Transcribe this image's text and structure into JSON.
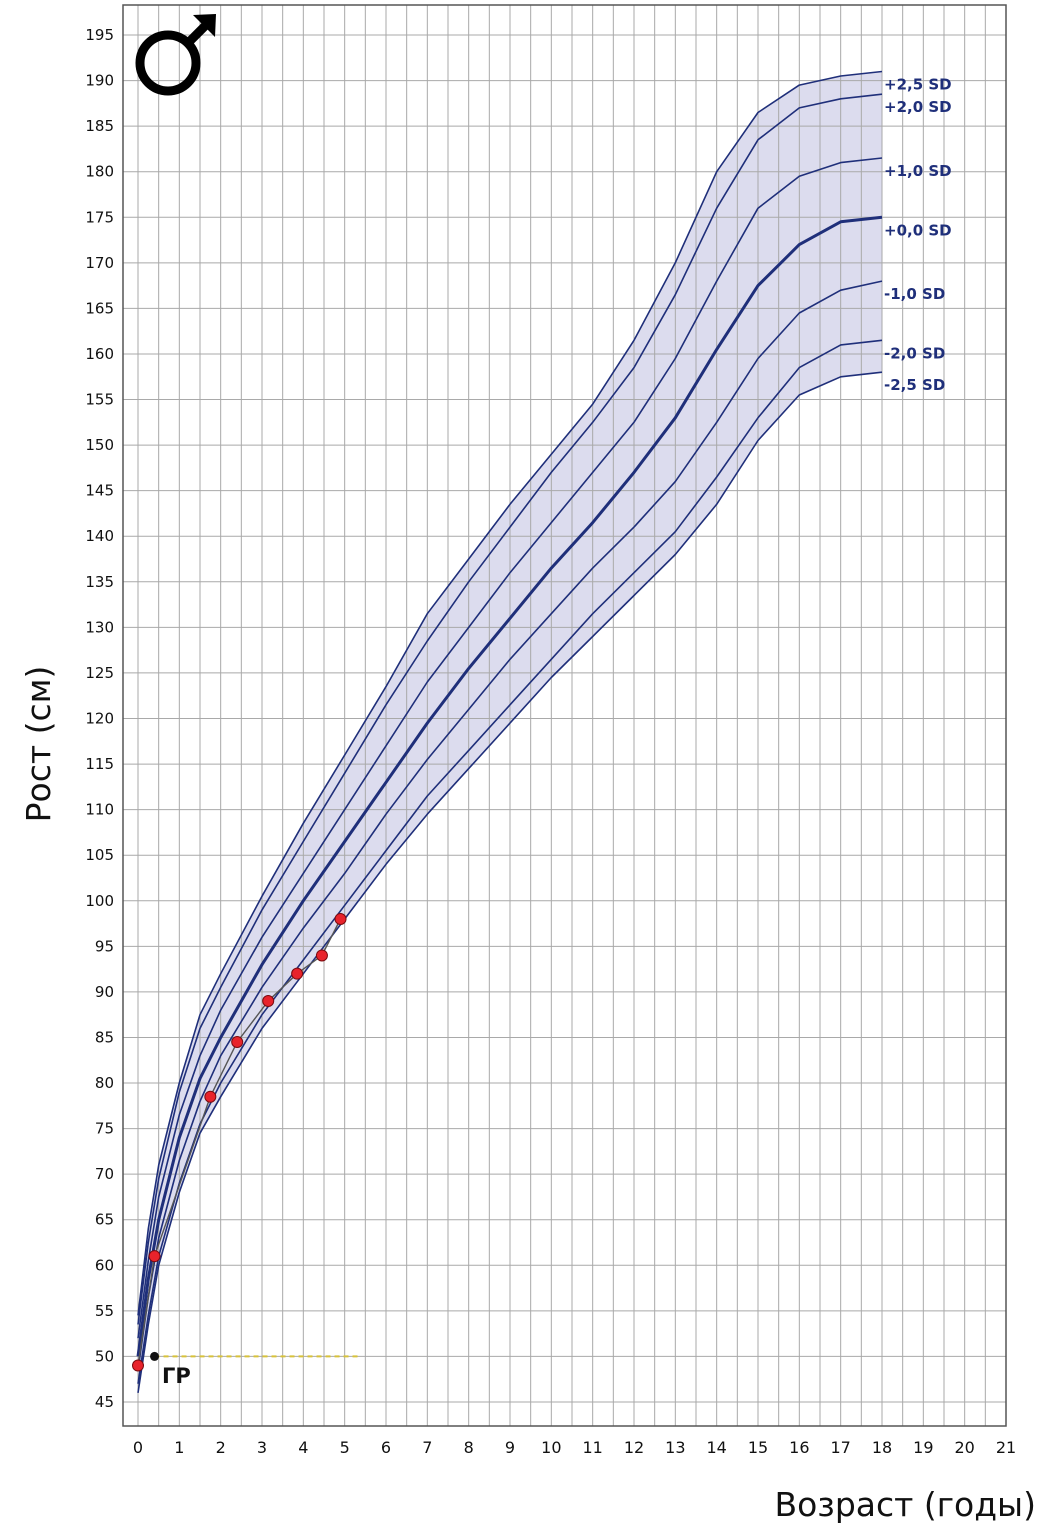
{
  "chart_data": {
    "type": "line",
    "symbol": "♂",
    "xlabel": "Возраст (годы)",
    "ylabel": "Рост (см)",
    "xlim": [
      0,
      21
    ],
    "ylim": [
      45,
      195
    ],
    "x_ticks": [
      0,
      1,
      2,
      3,
      4,
      5,
      6,
      7,
      8,
      9,
      10,
      11,
      12,
      13,
      14,
      15,
      16,
      17,
      18,
      19,
      20,
      21
    ],
    "y_ticks": [
      45,
      50,
      55,
      60,
      65,
      70,
      75,
      80,
      85,
      90,
      95,
      100,
      105,
      110,
      115,
      120,
      125,
      130,
      135,
      140,
      145,
      150,
      155,
      160,
      165,
      170,
      175,
      180,
      185,
      190,
      195
    ],
    "grid": true,
    "band_color": "#dcdcee",
    "line_color": "#1f2f7a",
    "series": [
      {
        "name": "+2,5 SD",
        "x": [
          0,
          0.25,
          0.5,
          1,
          1.5,
          2,
          3,
          4,
          5,
          6,
          7,
          8,
          9,
          10,
          11,
          12,
          13,
          14,
          15,
          16,
          17,
          18
        ],
        "y": [
          54.5,
          64,
          71,
          80,
          87.5,
          92,
          100.5,
          108.5,
          116,
          123.5,
          131.5,
          137.5,
          143.5,
          149,
          154.5,
          161.5,
          170,
          180,
          186.5,
          189.5,
          190.5,
          191
        ]
      },
      {
        "name": "+2,0 SD",
        "x": [
          0,
          0.25,
          0.5,
          1,
          1.5,
          2,
          3,
          4,
          5,
          6,
          7,
          8,
          9,
          10,
          11,
          12,
          13,
          14,
          15,
          16,
          17,
          18
        ],
        "y": [
          53.5,
          62.5,
          69.5,
          79,
          86,
          90.5,
          99,
          106.5,
          114,
          121.5,
          128.5,
          135,
          141,
          147,
          152.5,
          158.5,
          166.5,
          176,
          183.5,
          187,
          188,
          188.5
        ]
      },
      {
        "name": "+1,0 SD",
        "x": [
          0,
          0.25,
          0.5,
          1,
          1.5,
          2,
          3,
          4,
          5,
          6,
          7,
          8,
          9,
          10,
          11,
          12,
          13,
          14,
          15,
          16,
          17,
          18
        ],
        "y": [
          52,
          60.5,
          67.5,
          76.5,
          83,
          88,
          96,
          103,
          110,
          117,
          124,
          130,
          136,
          141.5,
          147,
          152.5,
          159.5,
          168,
          176,
          179.5,
          181,
          181.5
        ]
      },
      {
        "name": "+0,0 SD",
        "x": [
          0,
          0.25,
          0.5,
          1,
          1.5,
          2,
          3,
          4,
          5,
          6,
          7,
          8,
          9,
          10,
          11,
          12,
          13,
          14,
          15,
          16,
          17,
          18
        ],
        "y": [
          50,
          58.5,
          65,
          74,
          80.5,
          85,
          93,
          100,
          106.5,
          113,
          119.5,
          125.5,
          131,
          136.5,
          141.5,
          147,
          153,
          160.5,
          167.5,
          172,
          174.5,
          175
        ]
      },
      {
        "name": "-1,0 SD",
        "x": [
          0,
          0.25,
          0.5,
          1,
          1.5,
          2,
          3,
          4,
          5,
          6,
          7,
          8,
          9,
          10,
          11,
          12,
          13,
          14,
          15,
          16,
          17,
          18
        ],
        "y": [
          48.5,
          56.5,
          63,
          71.5,
          78,
          83,
          90.5,
          97,
          103,
          109.5,
          115.5,
          121,
          126.5,
          131.5,
          136.5,
          141,
          146,
          152.5,
          159.5,
          164.5,
          167,
          168
        ]
      },
      {
        "name": "-2,0 SD",
        "x": [
          0,
          0.25,
          0.5,
          1,
          1.5,
          2,
          3,
          4,
          5,
          6,
          7,
          8,
          9,
          10,
          11,
          12,
          13,
          14,
          15,
          16,
          17,
          18
        ],
        "y": [
          47,
          54.5,
          61,
          69,
          75.5,
          80,
          87.5,
          93.5,
          99.5,
          105.5,
          111.5,
          116.5,
          121.5,
          126.5,
          131.5,
          136,
          140.5,
          146.5,
          153,
          158.5,
          161,
          161.5
        ]
      },
      {
        "name": "-2,5 SD",
        "x": [
          0,
          0.25,
          0.5,
          1,
          1.5,
          2,
          3,
          4,
          5,
          6,
          7,
          8,
          9,
          10,
          11,
          12,
          13,
          14,
          15,
          16,
          17,
          18
        ],
        "y": [
          46,
          53.5,
          60,
          68,
          74.5,
          78.5,
          86,
          92,
          98,
          104,
          109.5,
          114.5,
          119.5,
          124.5,
          129,
          133.5,
          138,
          143.5,
          150.5,
          155.5,
          157.5,
          158
        ]
      }
    ],
    "patient_points": [
      {
        "x": 0.0,
        "y": 49
      },
      {
        "x": 0.4,
        "y": 61
      },
      {
        "x": 1.75,
        "y": 78.5
      },
      {
        "x": 2.4,
        "y": 84.5
      },
      {
        "x": 3.15,
        "y": 89
      },
      {
        "x": 3.85,
        "y": 92
      },
      {
        "x": 4.45,
        "y": 94
      },
      {
        "x": 4.9,
        "y": 98
      }
    ],
    "annotation": {
      "text": "ГР",
      "x": 0.4,
      "y": 50
    }
  }
}
